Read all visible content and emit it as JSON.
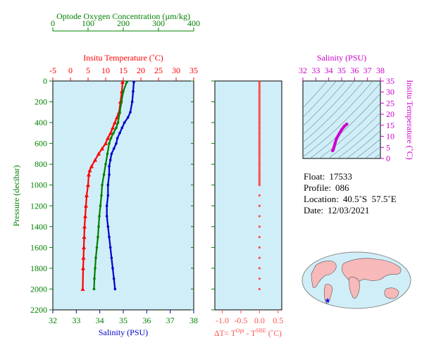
{
  "chart_data": [
    {
      "type": "line",
      "panel": "main-profiles",
      "xaxis_top_oxygen": {
        "label": "Optode Oxygen Concentration (µm/kg)",
        "ticks": [
          "0",
          "100",
          "200",
          "300",
          "400"
        ],
        "range": [
          0,
          400
        ],
        "color": "#008000"
      },
      "xaxis_top_temp": {
        "label": "Insitu Temperature (˚C)",
        "ticks": [
          "-5",
          "0",
          "5",
          "10",
          "15",
          "20",
          "25",
          "30",
          "35"
        ],
        "range": [
          -5,
          35
        ],
        "color": "#ff0000"
      },
      "xaxis_bottom_salinity": {
        "label": "Salinity (PSU)",
        "ticks": [
          "32",
          "33",
          "34",
          "35",
          "36",
          "37",
          "38"
        ],
        "range": [
          32,
          38
        ],
        "color": "#0000cc"
      },
      "yaxis": {
        "label": "Pressure (decibar)",
        "ticks": [
          "0",
          "200",
          "400",
          "600",
          "800",
          "1000",
          "1200",
          "1400",
          "1600",
          "1800",
          "2000",
          "2200"
        ],
        "range": [
          0,
          2200
        ],
        "inverted": true,
        "color": "#008000"
      },
      "grid": false,
      "background": "#d0eef8",
      "series": [
        {
          "color": "#ff0000",
          "x": [
            14.8,
            14.6,
            14.2,
            13.8,
            13.2,
            12.6,
            12.0,
            11.4,
            10.6,
            10.0,
            9.0,
            8.0,
            7.0,
            6.0,
            5.5,
            5.2,
            5.0,
            4.6,
            4.4,
            4.2,
            4.0,
            3.9,
            3.8,
            3.7,
            3.6,
            3.5
          ],
          "y": [
            10,
            100,
            200,
            300,
            350,
            400,
            450,
            500,
            550,
            600,
            650,
            700,
            760,
            820,
            860,
            900,
            1000,
            1100,
            1200,
            1300,
            1400,
            1500,
            1600,
            1700,
            1800,
            2000
          ]
        },
        {
          "color": "#0000cc",
          "x": [
            35.45,
            35.42,
            35.38,
            35.3,
            35.2,
            35.05,
            34.95,
            34.85,
            34.75,
            34.7,
            34.6,
            34.5,
            34.45,
            34.4,
            34.4,
            34.35,
            34.35,
            34.3,
            34.3,
            34.35,
            34.4,
            34.45,
            34.5,
            34.55,
            34.6,
            34.65
          ],
          "y": [
            10,
            100,
            200,
            300,
            350,
            400,
            450,
            500,
            550,
            600,
            650,
            700,
            760,
            820,
            900,
            1000,
            1100,
            1200,
            1300,
            1400,
            1500,
            1600,
            1700,
            1800,
            1900,
            2000
          ]
        },
        {
          "color": "#008000",
          "x": [
            210,
            200,
            195,
            190,
            185,
            180,
            172,
            165,
            160,
            155,
            150,
            145,
            140,
            138,
            135,
            132,
            130,
            128,
            125,
            122,
            120,
            118,
            117
          ],
          "y": [
            10,
            100,
            200,
            300,
            400,
            450,
            500,
            550,
            600,
            700,
            800,
            900,
            1000,
            1100,
            1200,
            1300,
            1400,
            1500,
            1600,
            1700,
            1800,
            1900,
            2000
          ]
        }
      ]
    },
    {
      "type": "scatter",
      "panel": "delta-t",
      "xaxis": {
        "label": "ΔT= TOpt - TSBE (˚C)",
        "ticks": [
          "-1.0",
          "-0.5",
          "0.0",
          "0.5"
        ],
        "range": [
          -1.2,
          0.6
        ],
        "color": "#ff5050"
      },
      "series": [
        {
          "color": "#ff5050",
          "x": [
            0.0,
            0.0,
            0.0,
            0.0,
            0.0,
            0.0,
            0.0,
            0.0,
            0.0,
            0.0,
            0.0,
            0.0,
            0.0,
            0.0,
            0.0,
            0.0,
            0.0,
            0.0,
            0.0,
            0.0,
            0.0
          ],
          "y": [
            10,
            100,
            200,
            300,
            400,
            500,
            600,
            700,
            800,
            900,
            1000,
            1100,
            1200,
            1300,
            1400,
            1500,
            1600,
            1700,
            1800,
            1900,
            2000
          ]
        }
      ]
    },
    {
      "type": "line",
      "panel": "ts-diagram",
      "xaxis": {
        "label": "Salinity (PSU)",
        "ticks": [
          "32",
          "33",
          "34",
          "35",
          "36",
          "37",
          "38"
        ],
        "range": [
          32,
          38
        ],
        "color": "#cc00cc"
      },
      "yaxis": {
        "label": "Insitu Temperature (˚C)",
        "ticks": [
          "0",
          "5",
          "10",
          "15",
          "20",
          "25",
          "30",
          "35"
        ],
        "range": [
          0,
          35
        ],
        "color": "#cc00cc"
      },
      "series": [
        {
          "color": "#cc00cc",
          "x": [
            34.3,
            34.35,
            34.4,
            34.5,
            34.6,
            34.8,
            35.0,
            35.2,
            35.4
          ],
          "y": [
            3.5,
            4.0,
            5.0,
            7.0,
            9.0,
            11.0,
            13.0,
            14.5,
            15.5
          ]
        }
      ]
    }
  ],
  "info": {
    "float_key": "Float:",
    "float_val": "17533",
    "profile_key": "Profile:",
    "profile_val": "086",
    "location_key": "Location:",
    "location_val": "40.5˚S  57.5˚E",
    "date_key": "Date:",
    "date_val": "12/03/2021"
  },
  "labels": {
    "oxygen_title": "Optode Oxygen Concentration (µm/kg)",
    "temp_title": "Insitu Temperature (˚C)",
    "salinity_bottom_title": "Salinity (PSU)",
    "pressure_title": "Pressure (decibar)",
    "delta_prefix": "ΔT= T",
    "delta_sup1": "Opt",
    "delta_mid": " - T",
    "delta_sup2": "SBE",
    "delta_suffix": " (˚C)",
    "ts_x_title": "Salinity (PSU)",
    "ts_y_title": "Insitu Temperature (˚C)"
  },
  "colors": {
    "oxygen": "#008000",
    "temperature": "#ff0000",
    "salinity": "#0000cc",
    "delta": "#ff5050",
    "ts": "#cc00cc",
    "panel_bg": "#d0eef8"
  }
}
